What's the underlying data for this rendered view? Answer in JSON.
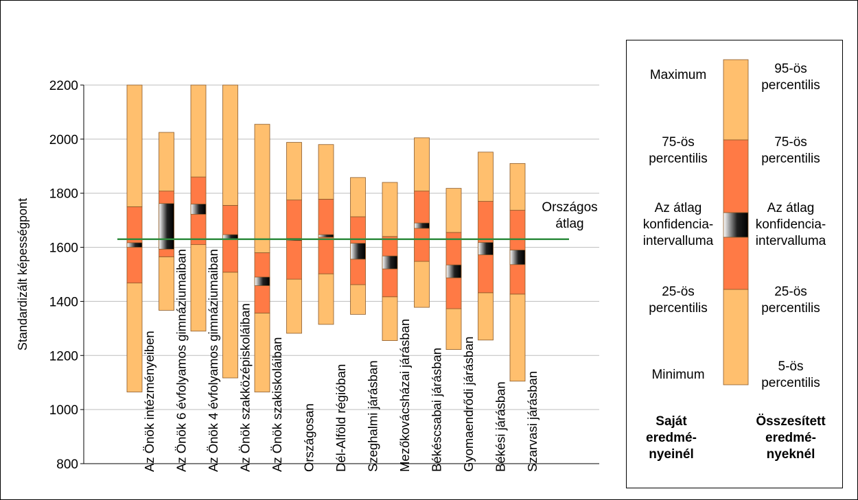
{
  "chart_data": {
    "type": "boxplot-percentile",
    "ylabel": "Standardizált képességpont",
    "ylim": [
      800,
      2200
    ],
    "yticks": [
      800,
      1000,
      1200,
      1400,
      1600,
      1800,
      2000,
      2200
    ],
    "reference_line": {
      "label": "Országos\nátlag",
      "value": 1630,
      "color": "#2e8b3e"
    },
    "colors": {
      "outer": "#ffbf6e",
      "inner": "#ff7a45",
      "edge": "#8a5a2a",
      "grid": "#bdbdbd"
    },
    "groups": [
      {
        "name": "Az Önök intézményeiben",
        "min": 1065,
        "p25": 1468,
        "p75": 1750,
        "max": 2200,
        "ci_low": 1600,
        "ci_high": 1617
      },
      {
        "name": "Az Önök 6 évfolyamos gimnáziumaiban",
        "min": 1367,
        "p25": 1565,
        "p75": 1808,
        "max": 2025,
        "ci_low": 1593,
        "ci_high": 1762
      },
      {
        "name": "Az Önök 4 évfolyamos gimnáziumaiban",
        "min": 1290,
        "p25": 1610,
        "p75": 1860,
        "max": 2200,
        "ci_low": 1722,
        "ci_high": 1760
      },
      {
        "name": "Az Önök szakközépiskoláiban",
        "min": 1117,
        "p25": 1508,
        "p75": 1755,
        "max": 2200,
        "ci_low": 1628,
        "ci_high": 1647
      },
      {
        "name": "Az Önök szakiskoláiban",
        "min": 1065,
        "p25": 1357,
        "p75": 1580,
        "max": 2055,
        "ci_low": 1458,
        "ci_high": 1490
      },
      {
        "name": "Országosan",
        "min": 1282,
        "p25": 1482,
        "p75": 1775,
        "max": 1988,
        "ci_low": 1625,
        "ci_high": 1633
      },
      {
        "name": "Dél-Alföld régióban",
        "min": 1315,
        "p25": 1502,
        "p75": 1778,
        "max": 1980,
        "ci_low": 1637,
        "ci_high": 1647
      },
      {
        "name": "Szeghalmi járásban",
        "min": 1352,
        "p25": 1462,
        "p75": 1713,
        "max": 1858,
        "ci_low": 1556,
        "ci_high": 1615
      },
      {
        "name": "Mezőkovácsházai járásban",
        "min": 1255,
        "p25": 1417,
        "p75": 1640,
        "max": 1840,
        "ci_low": 1520,
        "ci_high": 1568
      },
      {
        "name": "Békéscsabai járásban",
        "min": 1378,
        "p25": 1548,
        "p75": 1808,
        "max": 2005,
        "ci_low": 1670,
        "ci_high": 1690
      },
      {
        "name": "Gyomaendrődi járásban",
        "min": 1222,
        "p25": 1373,
        "p75": 1655,
        "max": 1818,
        "ci_low": 1487,
        "ci_high": 1535
      },
      {
        "name": "Békési járásban",
        "min": 1257,
        "p25": 1432,
        "p75": 1770,
        "max": 1952,
        "ci_low": 1572,
        "ci_high": 1618
      },
      {
        "name": "Szarvasi járásban",
        "min": 1105,
        "p25": 1427,
        "p75": 1737,
        "max": 1910,
        "ci_low": 1536,
        "ci_high": 1590
      }
    ]
  },
  "legend": {
    "left": {
      "max": "Maximum",
      "p75": "75-ös\npercentilis",
      "ci": "Az átlag\nkonfidencia-\nintervalluma",
      "p25": "25-ös\npercentilis",
      "min": "Minimum",
      "caption": "Saját\neredmé-\nnyeinél"
    },
    "right": {
      "p95": "95-ös\npercentilis",
      "p75": "75-ös\npercentilis",
      "ci": "Az átlag\nkonfidencia-\nintervalluma",
      "p25": "25-ös\npercentilis",
      "p5": "5-ös\npercentilis",
      "caption": "Összesített\neredmé-\nnyeknél"
    }
  }
}
